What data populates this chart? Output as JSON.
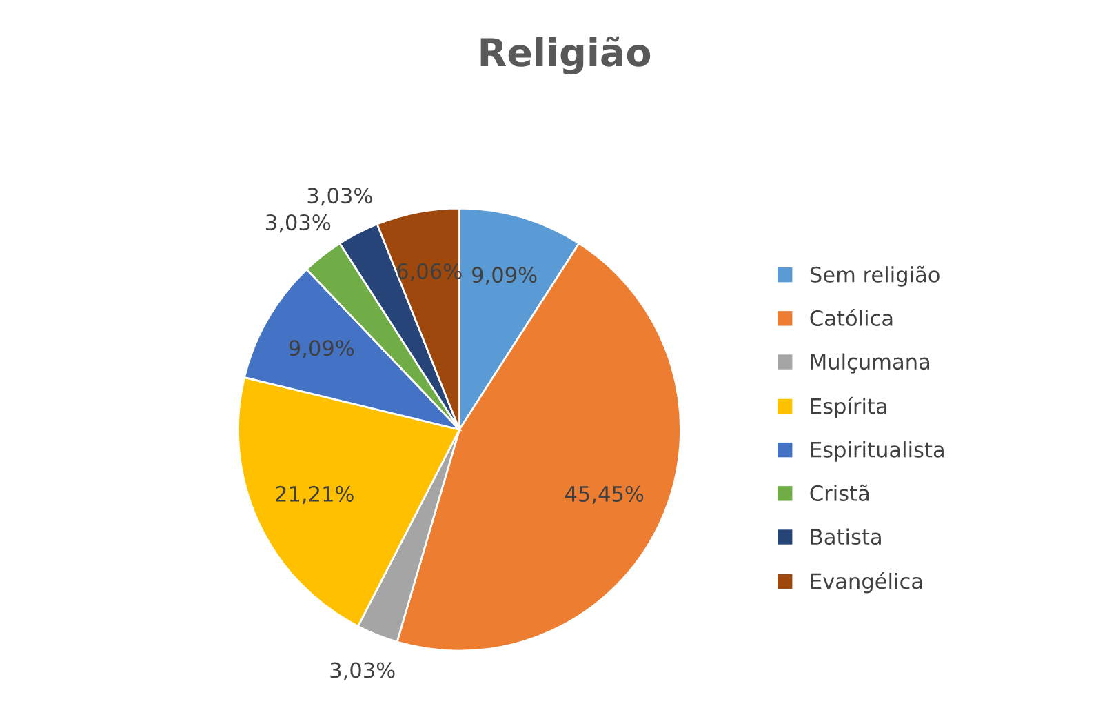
{
  "chart_data": {
    "type": "pie",
    "title": "Religião",
    "categories": [
      "Sem religião",
      "Católica",
      "Mulçumana",
      "Espírita",
      "Espiritualista",
      "Cristã",
      "Batista",
      "Evangélica"
    ],
    "values": [
      9.09,
      45.45,
      3.03,
      21.21,
      9.09,
      3.03,
      3.03,
      6.06
    ],
    "value_labels": [
      "9,09%",
      "45,45%",
      "3,03%",
      "21,21%",
      "9,09%",
      "3,03%",
      "3,03%",
      "6,06%"
    ],
    "colors": [
      "#5b9bd5",
      "#ed7d31",
      "#a5a5a5",
      "#ffc000",
      "#4472c4",
      "#70ad47",
      "#264478",
      "#9e480e"
    ],
    "legend": "right"
  }
}
